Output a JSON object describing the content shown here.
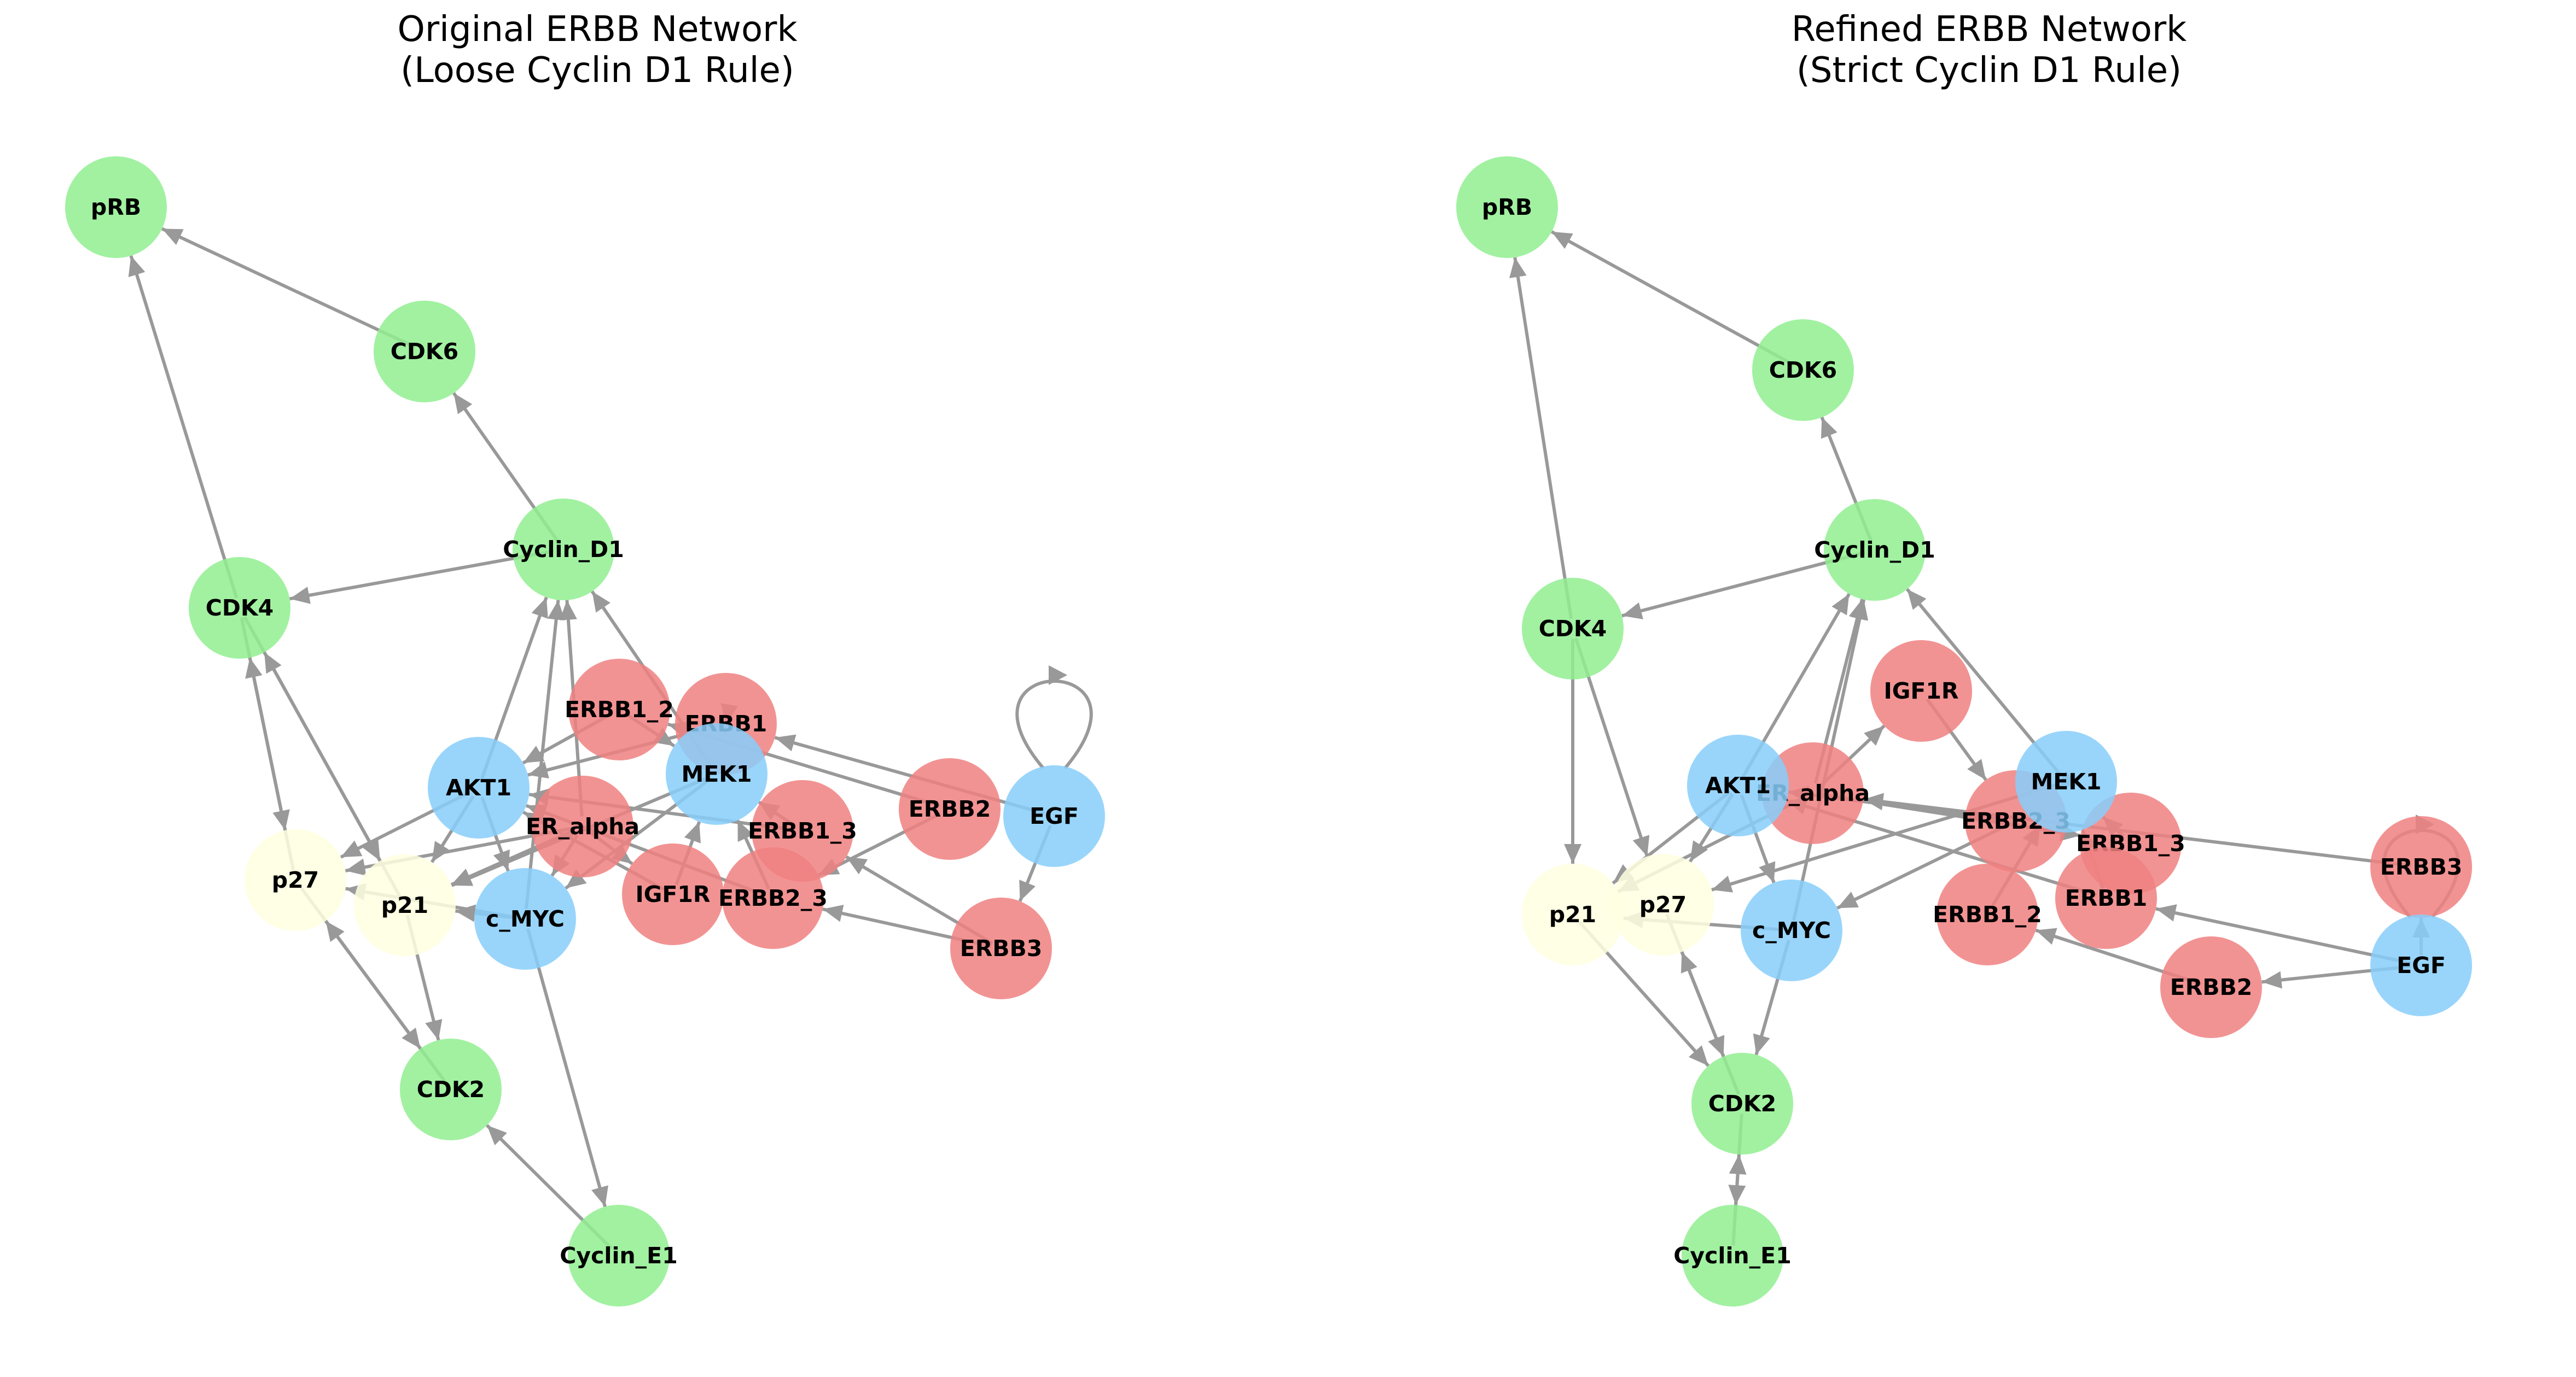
{
  "colors": {
    "green": "#90ee90",
    "red": "#f08080",
    "blue": "#87cefa",
    "yellow": "#ffffe0",
    "edge": "#999999"
  },
  "panels": [
    {
      "id": "original",
      "title_line1": "Original ERBB Network",
      "title_line2": "(Loose Cyclin D1 Rule)",
      "nodes": [
        {
          "id": "pRB",
          "group": "green"
        },
        {
          "id": "CDK6",
          "group": "green"
        },
        {
          "id": "Cyclin_D1",
          "group": "green"
        },
        {
          "id": "CDK4",
          "group": "green"
        },
        {
          "id": "CDK2",
          "group": "green"
        },
        {
          "id": "Cyclin_E1",
          "group": "green"
        },
        {
          "id": "ERBB1_2",
          "group": "red"
        },
        {
          "id": "ERBB1",
          "group": "red"
        },
        {
          "id": "ER_alpha",
          "group": "red"
        },
        {
          "id": "IGF1R",
          "group": "red"
        },
        {
          "id": "ERBB1_3",
          "group": "red"
        },
        {
          "id": "ERBB2_3",
          "group": "red"
        },
        {
          "id": "ERBB2",
          "group": "red"
        },
        {
          "id": "ERBB3",
          "group": "red"
        },
        {
          "id": "AKT1",
          "group": "blue"
        },
        {
          "id": "MEK1",
          "group": "blue"
        },
        {
          "id": "c_MYC",
          "group": "blue"
        },
        {
          "id": "EGF",
          "group": "blue"
        },
        {
          "id": "p27",
          "group": "yellow"
        },
        {
          "id": "p21",
          "group": "yellow"
        }
      ],
      "edges": [
        [
          "CDK6",
          "pRB"
        ],
        [
          "CDK4",
          "pRB"
        ],
        [
          "Cyclin_D1",
          "CDK6"
        ],
        [
          "Cyclin_D1",
          "CDK4"
        ],
        [
          "AKT1",
          "Cyclin_D1"
        ],
        [
          "c_MYC",
          "Cyclin_D1"
        ],
        [
          "ER_alpha",
          "Cyclin_D1"
        ],
        [
          "MEK1",
          "Cyclin_D1"
        ],
        [
          "p27",
          "CDK4"
        ],
        [
          "p21",
          "CDK4"
        ],
        [
          "CDK4",
          "p27"
        ],
        [
          "CDK4",
          "p21"
        ],
        [
          "p27",
          "CDK2"
        ],
        [
          "p21",
          "CDK2"
        ],
        [
          "CDK2",
          "p27"
        ],
        [
          "Cyclin_E1",
          "CDK2"
        ],
        [
          "c_MYC",
          "Cyclin_E1"
        ],
        [
          "AKT1",
          "p27"
        ],
        [
          "AKT1",
          "p21"
        ],
        [
          "AKT1",
          "c_MYC"
        ],
        [
          "c_MYC",
          "p21"
        ],
        [
          "c_MYC",
          "p27"
        ],
        [
          "ER_alpha",
          "c_MYC"
        ],
        [
          "MEK1",
          "c_MYC"
        ],
        [
          "ER_alpha",
          "p21"
        ],
        [
          "ERBB1",
          "MEK1"
        ],
        [
          "ERBB1",
          "AKT1"
        ],
        [
          "ERBB1_2",
          "AKT1"
        ],
        [
          "ERBB1_2",
          "MEK1"
        ],
        [
          "ERBB1_3",
          "MEK1"
        ],
        [
          "ERBB1_3",
          "AKT1"
        ],
        [
          "ERBB2_3",
          "MEK1"
        ],
        [
          "ERBB2_3",
          "AKT1"
        ],
        [
          "IGF1R",
          "MEK1"
        ],
        [
          "IGF1R",
          "AKT1"
        ],
        [
          "ERBB2",
          "ERBB1_2"
        ],
        [
          "EGF",
          "ERBB1"
        ],
        [
          "ERBB3",
          "ERBB2_3"
        ],
        [
          "ERBB3",
          "ERBB1_3"
        ],
        [
          "EGF",
          "ERBB3"
        ],
        [
          "ERBB2",
          "ERBB2_3"
        ],
        [
          "ER_alpha",
          "IGF1R"
        ],
        [
          "ER_alpha",
          "p27"
        ],
        [
          "MEK1",
          "p21"
        ],
        [
          "EGF",
          "EGF"
        ]
      ]
    },
    {
      "id": "refined",
      "title_line1": "Refined ERBB Network",
      "title_line2": "(Strict Cyclin D1 Rule)",
      "nodes": [
        {
          "id": "pRB",
          "group": "green"
        },
        {
          "id": "CDK6",
          "group": "green"
        },
        {
          "id": "Cyclin_D1",
          "group": "green"
        },
        {
          "id": "CDK4",
          "group": "green"
        },
        {
          "id": "CDK2",
          "group": "green"
        },
        {
          "id": "Cyclin_E1",
          "group": "green"
        },
        {
          "id": "IGF1R",
          "group": "red"
        },
        {
          "id": "ER_alpha",
          "group": "red"
        },
        {
          "id": "ERBB2_3",
          "group": "red"
        },
        {
          "id": "ERBB1_3",
          "group": "red"
        },
        {
          "id": "ERBB3",
          "group": "red"
        },
        {
          "id": "ERBB1_2",
          "group": "red"
        },
        {
          "id": "ERBB1",
          "group": "red"
        },
        {
          "id": "ERBB2",
          "group": "red"
        },
        {
          "id": "AKT1",
          "group": "blue"
        },
        {
          "id": "MEK1",
          "group": "blue"
        },
        {
          "id": "c_MYC",
          "group": "blue"
        },
        {
          "id": "EGF",
          "group": "blue"
        },
        {
          "id": "p21",
          "group": "yellow"
        },
        {
          "id": "p27",
          "group": "yellow"
        }
      ],
      "edges": [
        [
          "CDK6",
          "pRB"
        ],
        [
          "CDK4",
          "pRB"
        ],
        [
          "Cyclin_D1",
          "CDK6"
        ],
        [
          "Cyclin_D1",
          "CDK4"
        ],
        [
          "AKT1",
          "Cyclin_D1"
        ],
        [
          "c_MYC",
          "Cyclin_D1"
        ],
        [
          "ER_alpha",
          "Cyclin_D1"
        ],
        [
          "MEK1",
          "Cyclin_D1"
        ],
        [
          "CDK4",
          "p21"
        ],
        [
          "CDK4",
          "p27"
        ],
        [
          "p21",
          "CDK2"
        ],
        [
          "p27",
          "CDK2"
        ],
        [
          "CDK2",
          "p27"
        ],
        [
          "CDK2",
          "Cyclin_E1"
        ],
        [
          "Cyclin_E1",
          "CDK2"
        ],
        [
          "c_MYC",
          "CDK2"
        ],
        [
          "AKT1",
          "p21"
        ],
        [
          "AKT1",
          "p27"
        ],
        [
          "AKT1",
          "c_MYC"
        ],
        [
          "c_MYC",
          "p21"
        ],
        [
          "ER_alpha",
          "p21"
        ],
        [
          "ER_alpha",
          "IGF1R"
        ],
        [
          "ER_alpha",
          "ERBB1_3"
        ],
        [
          "MEK1",
          "ERBB2_3"
        ],
        [
          "ERBB1",
          "AKT1"
        ],
        [
          "ERBB1",
          "MEK1"
        ],
        [
          "ERBB1_2",
          "MEK1"
        ],
        [
          "ERBB2_3",
          "AKT1"
        ],
        [
          "ERBB1_3",
          "MEK1"
        ],
        [
          "ERBB3",
          "ER_alpha"
        ],
        [
          "EGF",
          "ERBB3"
        ],
        [
          "EGF",
          "ERBB1"
        ],
        [
          "ERBB2",
          "ERBB1_2"
        ],
        [
          "EGF",
          "ERBB2"
        ],
        [
          "IGF1R",
          "ERBB2_3"
        ],
        [
          "ERBB2_3",
          "c_MYC"
        ],
        [
          "MEK1",
          "p27"
        ],
        [
          "EGF",
          "EGF"
        ]
      ]
    }
  ]
}
